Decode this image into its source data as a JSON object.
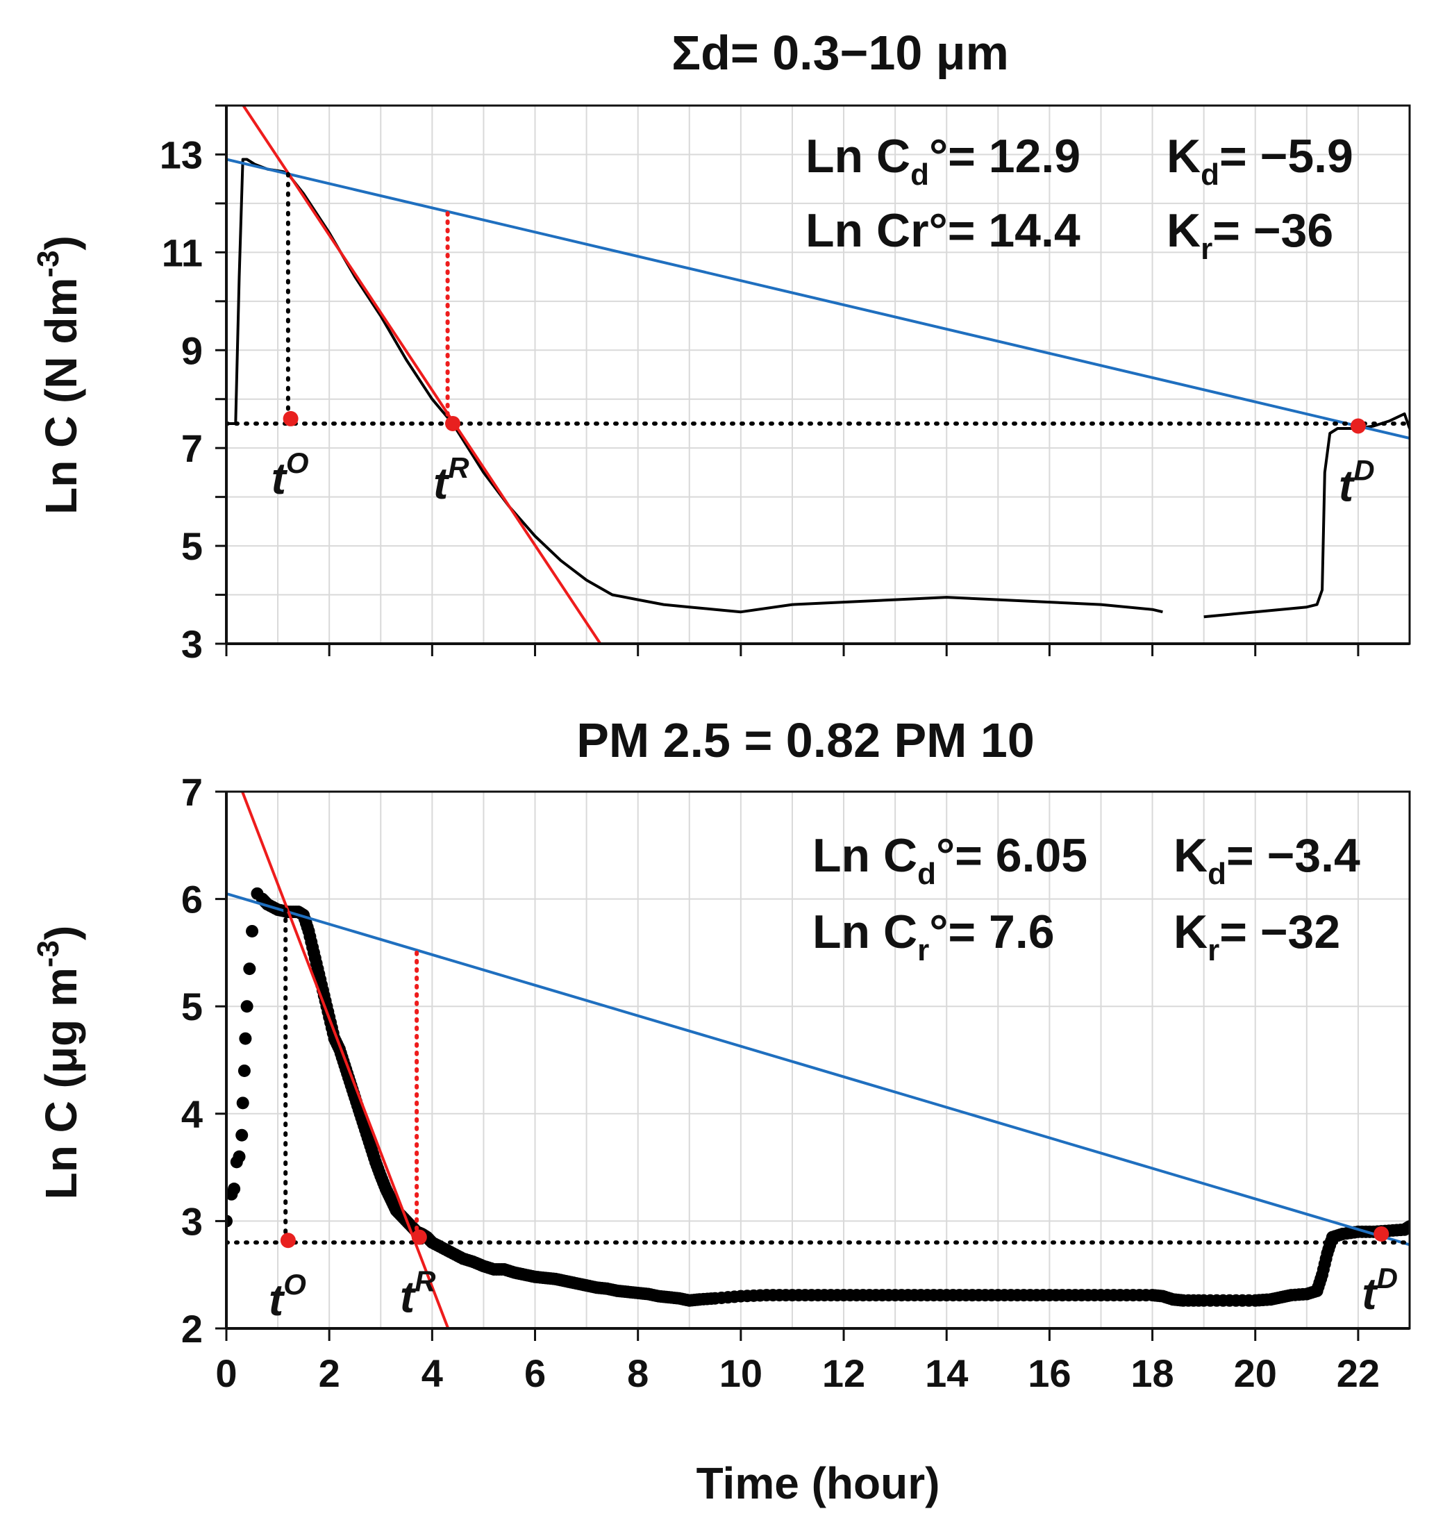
{
  "figure": {
    "xlabel": "Time (hour)",
    "colors": {
      "data": "#000000",
      "decay_line": "#1f6fbf",
      "removal_line": "#ee1c1c",
      "marker": "#e8201f",
      "grid": "#d9d9d9"
    }
  },
  "chart_data": [
    {
      "id": "top",
      "type": "line",
      "title": "Σd= 0.3−10 μm",
      "ylabel": "Ln C (N dm",
      "ylabel_sup": "-3",
      "ylabel_close": ")",
      "xlim": [
        0,
        23
      ],
      "ylim": [
        3,
        14
      ],
      "xticks": [
        0,
        2,
        4,
        6,
        8,
        10,
        12,
        14,
        16,
        18,
        20,
        22
      ],
      "yticks": [
        3,
        5,
        7,
        9,
        11,
        13
      ],
      "yticklabels": [
        "3",
        "5",
        "7",
        "9",
        "11",
        "13"
      ],
      "series": [
        {
          "name": "measured",
          "style": "line",
          "x": [
            0.05,
            0.18,
            0.25,
            0.32,
            0.4,
            0.55,
            0.8,
            1.1,
            1.2,
            1.5,
            2.0,
            2.5,
            3.0,
            3.5,
            4.0,
            4.4,
            4.7,
            5.0,
            5.5,
            6.0,
            6.5,
            7.0,
            7.5,
            8.0,
            8.5,
            9.0,
            9.5,
            10.0,
            11.0,
            12.0,
            13.0,
            14.0,
            15.0,
            16.0,
            17.0,
            18.0,
            18.2,
            18.5,
            19.0,
            19.5,
            20.0,
            20.5,
            21.0,
            21.2,
            21.3,
            21.35,
            21.45,
            21.6,
            22.0,
            22.3,
            22.6,
            22.9,
            23.0
          ],
          "y": [
            7.5,
            7.5,
            10.5,
            12.9,
            12.9,
            12.8,
            12.7,
            12.65,
            12.6,
            12.2,
            11.4,
            10.5,
            9.7,
            8.8,
            8.0,
            7.5,
            7.0,
            6.5,
            5.8,
            5.2,
            4.7,
            4.3,
            4.0,
            3.9,
            3.8,
            3.75,
            3.7,
            3.65,
            3.8,
            3.85,
            3.9,
            3.95,
            3.9,
            3.85,
            3.8,
            3.7,
            3.65,
            null,
            3.55,
            3.6,
            3.65,
            3.7,
            3.75,
            3.8,
            4.1,
            6.5,
            7.3,
            7.4,
            7.4,
            7.45,
            7.55,
            7.7,
            7.4
          ]
        },
        {
          "name": "decay fit",
          "style": "blue-line",
          "x": [
            0,
            23
          ],
          "y": [
            12.9,
            7.2
          ]
        },
        {
          "name": "removal fit",
          "style": "red-line",
          "x": [
            0.33,
            7.27
          ],
          "y": [
            14,
            3
          ]
        },
        {
          "name": "baseline",
          "style": "dotted-black",
          "x": [
            0,
            23
          ],
          "y": [
            7.5,
            7.5
          ]
        },
        {
          "name": "t-O drop",
          "style": "dotted-black",
          "x": [
            1.2,
            1.2
          ],
          "y": [
            12.6,
            7.6
          ]
        },
        {
          "name": "t-R drop",
          "style": "dotted-red",
          "x": [
            4.3,
            4.3
          ],
          "y": [
            11.8,
            7.6
          ]
        }
      ],
      "markers": [
        {
          "label": "t",
          "sup": "O",
          "x": 1.25,
          "y": 7.6
        },
        {
          "label": "t",
          "sup": "R",
          "x": 4.4,
          "y": 7.5
        },
        {
          "label": "t",
          "sup": "D",
          "x": 22.0,
          "y": 7.45
        }
      ],
      "annotations": {
        "row1_left_pre": "Ln C",
        "row1_left_sub": "d",
        "row1_left_post": "°= 12.9",
        "row1_right_pre": "K",
        "row1_right_sub": "d",
        "row1_right_post": "= −5.9",
        "row2_left": "Ln Cr°= 14.4",
        "row2_right_pre": "K",
        "row2_right_sub": "r",
        "row2_right_post": "= −36"
      }
    },
    {
      "id": "bottom",
      "type": "scatter",
      "title": "PM 2.5 = 0.82 PM 10",
      "ylabel": "Ln C (μg m",
      "ylabel_sup": "-3",
      "ylabel_close": ")",
      "xlim": [
        0,
        23
      ],
      "ylim": [
        2,
        7
      ],
      "xticks": [
        0,
        2,
        4,
        6,
        8,
        10,
        12,
        14,
        16,
        18,
        20,
        22
      ],
      "xticklabels": [
        "0",
        "2",
        "4",
        "6",
        "8",
        "10",
        "12",
        "14",
        "16",
        "18",
        "20",
        "22"
      ],
      "yticks": [
        2,
        3,
        4,
        5,
        6,
        7
      ],
      "yticklabels": [
        "2",
        "3",
        "4",
        "5",
        "6",
        "7"
      ],
      "series": [
        {
          "name": "measured",
          "style": "dots",
          "x": [
            0.0,
            0.1,
            0.15,
            0.2,
            0.25,
            0.3,
            0.32,
            0.35,
            0.37,
            0.4,
            0.45,
            0.5,
            0.6,
            0.7,
            0.8,
            1.0,
            1.2,
            1.4,
            1.5,
            1.6,
            1.7,
            1.8,
            1.9,
            2.0,
            2.1,
            2.2,
            2.3,
            2.4,
            2.5,
            2.6,
            2.7,
            2.8,
            2.9,
            3.0,
            3.1,
            3.2,
            3.3,
            3.4,
            3.5,
            3.6,
            3.7,
            3.8,
            3.9,
            4.0,
            4.2,
            4.4,
            4.6,
            4.8,
            5.0,
            5.2,
            5.4,
            5.6,
            5.8,
            6.0,
            6.2,
            6.4,
            6.6,
            6.8,
            7.0,
            7.2,
            7.4,
            7.6,
            7.8,
            8.0,
            8.2,
            8.4,
            8.6,
            8.8,
            9.0,
            9.2,
            9.5,
            10.0,
            10.5,
            11.0,
            11.5,
            12.0,
            12.5,
            13.0,
            13.5,
            14.0,
            14.5,
            15.0,
            15.5,
            16.0,
            16.5,
            17.0,
            17.5,
            18.0,
            18.2,
            18.4,
            18.6,
            19.0,
            19.5,
            20.0,
            20.3,
            20.5,
            20.7,
            21.0,
            21.2,
            21.3,
            21.4,
            21.5,
            21.7,
            22.0,
            22.3,
            22.6,
            22.9,
            23.0
          ],
          "y": [
            3.0,
            3.25,
            3.3,
            3.55,
            3.6,
            3.8,
            4.1,
            4.4,
            4.7,
            5.0,
            5.35,
            5.7,
            6.05,
            6.0,
            5.95,
            5.9,
            5.88,
            5.88,
            5.85,
            5.7,
            5.5,
            5.3,
            5.1,
            4.9,
            4.7,
            4.6,
            4.45,
            4.3,
            4.15,
            4.0,
            3.85,
            3.7,
            3.55,
            3.42,
            3.3,
            3.2,
            3.1,
            3.05,
            3.0,
            2.95,
            2.9,
            2.88,
            2.85,
            2.8,
            2.75,
            2.7,
            2.65,
            2.62,
            2.58,
            2.55,
            2.55,
            2.52,
            2.5,
            2.48,
            2.47,
            2.46,
            2.44,
            2.42,
            2.4,
            2.38,
            2.37,
            2.35,
            2.34,
            2.33,
            2.32,
            2.3,
            2.29,
            2.28,
            2.26,
            2.27,
            2.28,
            2.3,
            2.31,
            2.31,
            2.31,
            2.31,
            2.31,
            2.31,
            2.31,
            2.31,
            2.31,
            2.31,
            2.31,
            2.31,
            2.31,
            2.31,
            2.31,
            2.31,
            2.3,
            2.27,
            2.26,
            2.26,
            2.26,
            2.26,
            2.27,
            2.29,
            2.31,
            2.32,
            2.35,
            2.5,
            2.7,
            2.85,
            2.88,
            2.9,
            2.9,
            2.91,
            2.92,
            2.95
          ]
        },
        {
          "name": "decay fit",
          "style": "blue-line",
          "x": [
            0,
            23
          ],
          "y": [
            6.05,
            2.78
          ]
        },
        {
          "name": "removal fit",
          "style": "red-line",
          "x": [
            0.31,
            4.31
          ],
          "y": [
            7.0,
            2.0
          ]
        },
        {
          "name": "baseline",
          "style": "dotted-black",
          "x": [
            0,
            23
          ],
          "y": [
            2.8,
            2.8
          ]
        },
        {
          "name": "t-O drop",
          "style": "dotted-black",
          "x": [
            1.15,
            1.15
          ],
          "y": [
            5.9,
            2.85
          ]
        },
        {
          "name": "t-R drop",
          "style": "dotted-red",
          "x": [
            3.7,
            3.7
          ],
          "y": [
            5.5,
            2.9
          ]
        }
      ],
      "markers": [
        {
          "label": "t",
          "sup": "O",
          "x": 1.2,
          "y": 2.82
        },
        {
          "label": "t",
          "sup": "R",
          "x": 3.75,
          "y": 2.85
        },
        {
          "label": "t",
          "sup": "D",
          "x": 22.45,
          "y": 2.88
        }
      ],
      "annotations": {
        "row1_left_pre": "Ln C",
        "row1_left_sub": "d",
        "row1_left_post": "°= 6.05",
        "row1_right_pre": "K",
        "row1_right_sub": "d",
        "row1_right_post": "= −3.4",
        "row2_left_pre": "Ln C",
        "row2_left_sub": "r",
        "row2_left_post": "°= 7.6",
        "row2_right_pre": "K",
        "row2_right_sub": "r",
        "row2_right_post": "= −32"
      }
    }
  ]
}
